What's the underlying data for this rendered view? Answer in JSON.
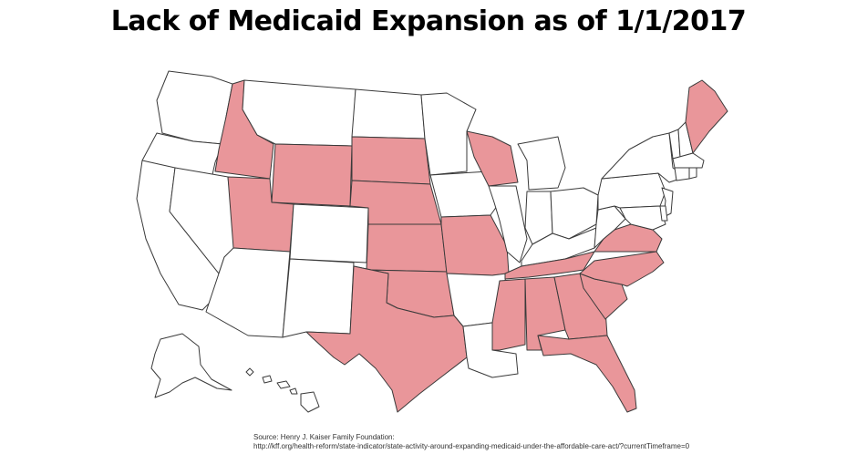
{
  "title": "Lack of Medicaid Expansion as of 1/1/2017",
  "legend_colors": {
    "not_expanded": "#e9969a",
    "expanded": "#ffffff",
    "border": "#3a3a3a"
  },
  "states_not_expanded": [
    "ID",
    "WY",
    "UT",
    "SD",
    "NE",
    "KS",
    "OK",
    "TX",
    "MO",
    "WI",
    "TN",
    "MS",
    "AL",
    "GA",
    "FL",
    "SC",
    "NC",
    "VA",
    "ME"
  ],
  "source": {
    "line1": "Source: Henry J. Kaiser Family Foundation:",
    "line2": "http://kff.org/health-reform/state-indicator/state-activity-around-expanding-medicaid-under-the-affordable-care-act/?currentTimeframe=0"
  }
}
